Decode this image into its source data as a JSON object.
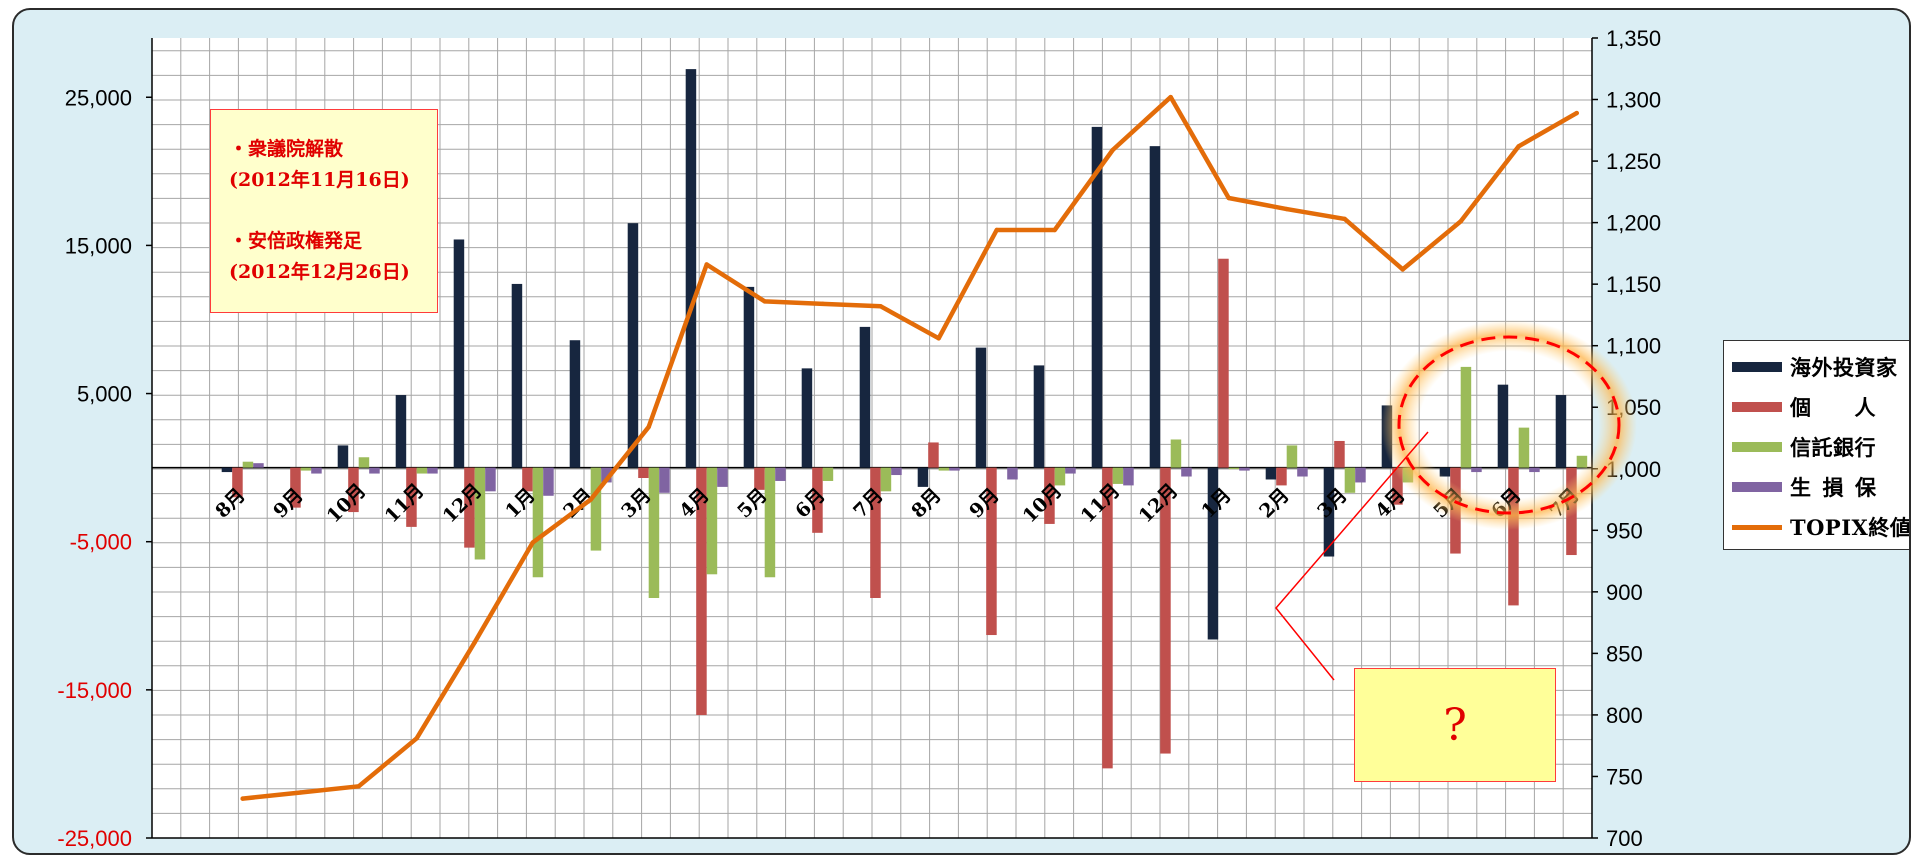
{
  "chart_data": {
    "type": "bar",
    "categories": [
      "8月",
      "9月",
      "10月",
      "11月",
      "12月",
      "1月",
      "2月",
      "3月",
      "4月",
      "5月",
      "6月",
      "7月",
      "8月",
      "9月",
      "10月",
      "11月",
      "12月",
      "1月",
      "2月",
      "3月",
      "4月",
      "5月",
      "6月",
      "7月"
    ],
    "series": [
      {
        "name": "海外投資家",
        "color": "#17263f",
        "values": [
          -300,
          0,
          1500,
          4900,
          15400,
          12400,
          8600,
          16500,
          26900,
          12200,
          6700,
          9500,
          -1300,
          8100,
          6900,
          23000,
          21700,
          -11600,
          -800,
          -6000,
          4200,
          -600,
          5600,
          4900
        ]
      },
      {
        "name": "個　　人",
        "color": "#c0504d",
        "values": [
          -2000,
          -2700,
          -3000,
          -4000,
          -5400,
          -1600,
          0,
          -700,
          -16700,
          -1500,
          -4400,
          -8800,
          1700,
          -11300,
          -3800,
          -20300,
          -19300,
          14100,
          -1200,
          1800,
          -2500,
          -5800,
          -9300,
          -5900
        ]
      },
      {
        "name": "信託銀行",
        "color": "#9bbb59",
        "values": [
          400,
          -200,
          700,
          -400,
          -6200,
          -7400,
          -5600,
          -8800,
          -7200,
          -7400,
          -900,
          -1600,
          -200,
          0,
          -1200,
          -1100,
          1900,
          -100,
          1500,
          -1700,
          -1000,
          6800,
          2700,
          800
        ]
      },
      {
        "name": "生 損 保",
        "color": "#8064a2",
        "values": [
          300,
          -400,
          -400,
          -400,
          -1600,
          -1900,
          -1000,
          -1700,
          -1300,
          -900,
          0,
          -500,
          -200,
          -800,
          -400,
          -1200,
          -600,
          -200,
          -600,
          -1000,
          0,
          -300,
          -300,
          0
        ]
      }
    ],
    "line_series": {
      "name": "TOPIX終値",
      "color": "#e36c09",
      "axis": "right",
      "values": [
        732,
        737,
        742,
        781,
        859,
        940,
        975,
        1034,
        1166,
        1136,
        1134,
        1132,
        1106,
        1194,
        1194,
        1259,
        1302,
        1220,
        1211,
        1203,
        1162,
        1201,
        1262,
        1289
      ]
    },
    "y_left": {
      "range": [
        -25000,
        29000
      ],
      "ticks": [
        25000,
        15000,
        5000,
        -5000,
        -15000,
        -25000
      ],
      "tick_labels": [
        "25,000",
        "15,000",
        "5,000",
        "-5,000",
        "-15,000",
        "-25,000"
      ]
    },
    "y_right": {
      "range": [
        700,
        1350
      ],
      "ticks": [
        1350,
        1300,
        1250,
        1200,
        1150,
        1100,
        1050,
        1000,
        950,
        900,
        850,
        800,
        750,
        700
      ],
      "tick_labels": [
        "1,350",
        "1,300",
        "1,250",
        "1,200",
        "1,150",
        "1,100",
        "1,050",
        "1,000",
        "950",
        "900",
        "850",
        "800",
        "750",
        "700"
      ]
    },
    "grid": true,
    "legend_position": "right",
    "colors": {
      "positive_tick": "#000000",
      "negative_tick": "#e00000",
      "background": "#dbeef4",
      "plot": "#ffffff",
      "grid": "#a6a6a6"
    }
  },
  "annotations": {
    "note_lines": [
      "・衆議院解散",
      "(2012年11月16日)",
      "・安倍政権発足",
      "(2012年12月26日)"
    ],
    "question": "?"
  }
}
